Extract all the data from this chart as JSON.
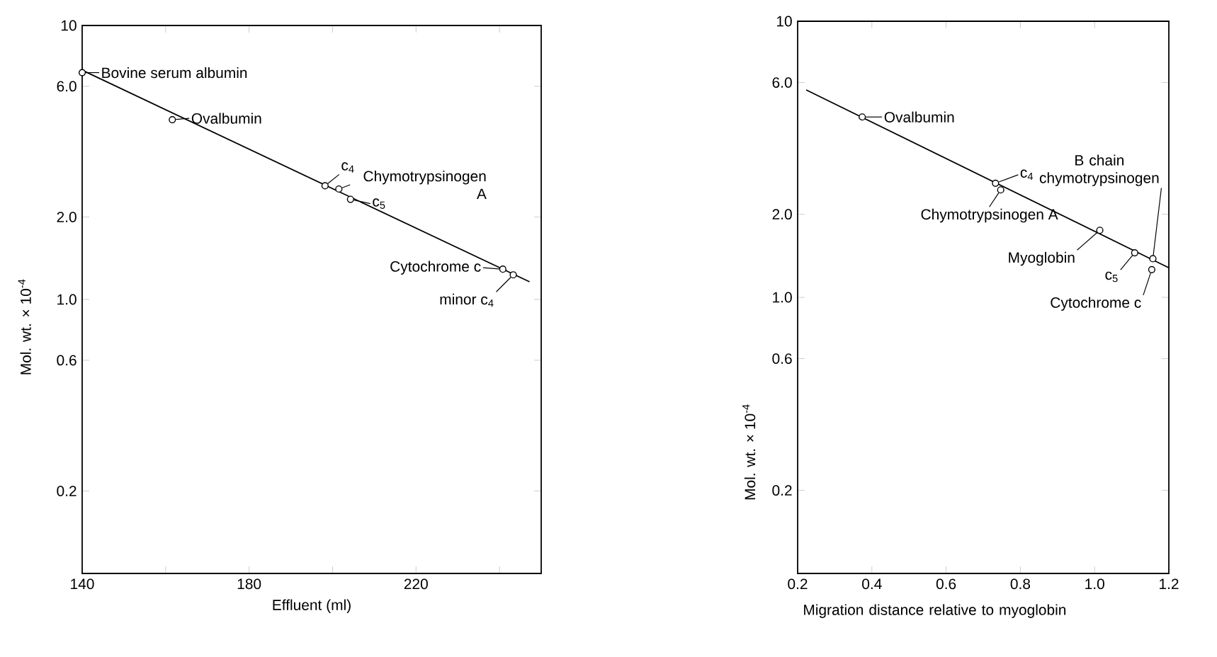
{
  "chart_data": [
    {
      "type": "scatter",
      "xlabel": "Effluent (ml)",
      "ylabel": "Mol. wt. × 10$^{-4}$",
      "log": "y",
      "xlim": [
        140,
        250
      ],
      "ylim": [
        0.1,
        10
      ],
      "xticks": [
        140,
        {
          "value": 160,
          "label": null
        },
        180,
        {
          "value": 200,
          "label": null
        },
        220,
        {
          "value": 240,
          "label": null
        }
      ],
      "yticks": [
        0.2,
        0.6,
        {
          "value": 1,
          "label": "1.0"
        },
        {
          "value": 2,
          "label": "2.0"
        },
        {
          "value": 6,
          "label": "6.0"
        },
        10
      ],
      "series": [
        {
          "marker": "circle",
          "color": "#000000",
          "x": [
            140,
            161.6,
            198.2,
            201.5,
            204.3,
            240.8,
            243.3
          ],
          "values": [
            6.73,
            4.53,
            2.6,
            2.53,
            2.32,
            1.29,
            1.23
          ]
        },
        {
          "type": "line",
          "marker": "none",
          "color": "#000000",
          "x": [
            140,
            247.2
          ],
          "values": [
            6.87,
            1.16
          ]
        }
      ],
      "annotations": [
        {
          "text": "Bovine serum albumin",
          "x": 140,
          "y": 6.73
        },
        {
          "text": "Ovalbumin",
          "x": 161.6,
          "y": 4.53
        },
        {
          "text": "c$_{4}$",
          "x": 198.2,
          "y": 2.6
        },
        {
          "text": "Chymotrypsinogen A",
          "x": 201.5,
          "y": 2.53
        },
        {
          "text": "c$_{5}$",
          "x": 204.3,
          "y": 2.32
        },
        {
          "text": "Cytochrome c",
          "x": 240.8,
          "y": 1.29
        },
        {
          "text": "minor c$_{4}$",
          "x": 243.3,
          "y": 1.23
        }
      ]
    },
    {
      "type": "scatter",
      "xlabel": "Migration distance relative to myoglobin",
      "ylabel": "Mol. wt. × 10$^{-4}$",
      "log": "y",
      "xlim": [
        0.2,
        1.2
      ],
      "ylim": [
        0.1,
        10
      ],
      "xticks": [
        0.2,
        0.4,
        0.6,
        0.8,
        {
          "value": 1,
          "label": "1.0"
        },
        1.2
      ],
      "yticks": [
        0.2,
        0.6,
        {
          "value": 1,
          "label": "1.0"
        },
        {
          "value": 2,
          "label": "2.0"
        },
        {
          "value": 6,
          "label": "6.0"
        },
        10
      ],
      "series": [
        {
          "marker": "circle",
          "color": "#000000",
          "x": [
            0.374,
            0.733,
            0.747,
            1.014,
            1.108,
            1.157,
            1.154
          ],
          "values": [
            4.5,
            2.59,
            2.45,
            1.75,
            1.45,
            1.38,
            1.26
          ]
        },
        {
          "type": "line",
          "marker": "none",
          "color": "#000000",
          "x": [
            0.223,
            1.2
          ],
          "values": [
            5.64,
            1.28
          ]
        }
      ],
      "annotations": [
        {
          "text": "Ovalbumin",
          "x": 0.374,
          "y": 4.5
        },
        {
          "text": "c$_{4}$",
          "x": 0.733,
          "y": 2.59
        },
        {
          "text": "Chymotrypsinogen A",
          "x": 0.747,
          "y": 2.45
        },
        {
          "text": "Myoglobin",
          "x": 1.014,
          "y": 1.75
        },
        {
          "text": "c$_{5}$",
          "x": 1.108,
          "y": 1.45
        },
        {
          "text": "B chain chymotrypsinogen",
          "x": 1.157,
          "y": 1.38
        },
        {
          "text": "Cytochrome c",
          "x": 1.154,
          "y": 1.26
        }
      ]
    }
  ]
}
